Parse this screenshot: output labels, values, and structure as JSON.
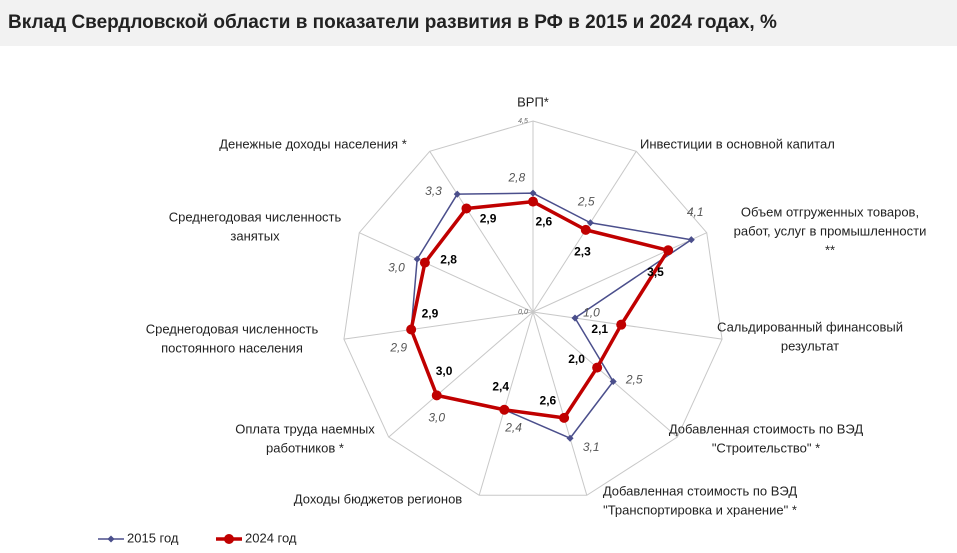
{
  "chart_data": {
    "type": "radar",
    "title": "Вклад Свердловской области в показатели развития в РФ в 2015 и 2024 годах, %",
    "categories": [
      [
        "ВРП*"
      ],
      [
        "Инвестиции в основной капитал"
      ],
      [
        "Объем отгруженных товаров,",
        "работ, услуг в промышленности",
        "**"
      ],
      [
        "Сальдированный финансовый",
        "результат"
      ],
      [
        "Добавленная стоимость по ВЭД",
        "\"Строительство\" *"
      ],
      [
        "Добавленная стоимость по ВЭД",
        "\"Транспортировка и хранение\" *"
      ],
      [
        "Доходы бюджетов регионов"
      ],
      [
        "Оплата труда наемных",
        "работников *"
      ],
      [
        "Среднегодовая численность",
        "постоянного населения"
      ],
      [
        "Среднегодовая численность",
        "занятых"
      ],
      [
        "Денежные доходы населения *"
      ]
    ],
    "series": [
      {
        "name": "2015 год",
        "color": "#4b4f8c",
        "values": [
          2.8,
          2.5,
          4.1,
          1.0,
          2.5,
          3.1,
          2.4,
          3.0,
          2.9,
          3.0,
          3.3
        ],
        "value_labels": [
          "2,8",
          "2,5",
          "4,1",
          "1,0",
          "2,5",
          "3,1",
          "2,4",
          "3,0",
          "2,9",
          "3,0",
          "3,3"
        ]
      },
      {
        "name": "2024 год",
        "color": "#c00000",
        "values": [
          2.6,
          2.3,
          3.5,
          2.1,
          2.0,
          2.6,
          2.4,
          3.0,
          2.9,
          2.8,
          2.9
        ],
        "value_labels": [
          "2,6",
          "2,3",
          "3,5",
          "2,1",
          "2,0",
          "2,6",
          "2,4",
          "3,0",
          "2,9",
          "2,8",
          "2,9"
        ]
      }
    ],
    "ylim": [
      0,
      4.5
    ],
    "yticks": [
      {
        "value": 0,
        "label": "0,0"
      },
      {
        "value": 4.5,
        "label": "4,5"
      }
    ]
  }
}
